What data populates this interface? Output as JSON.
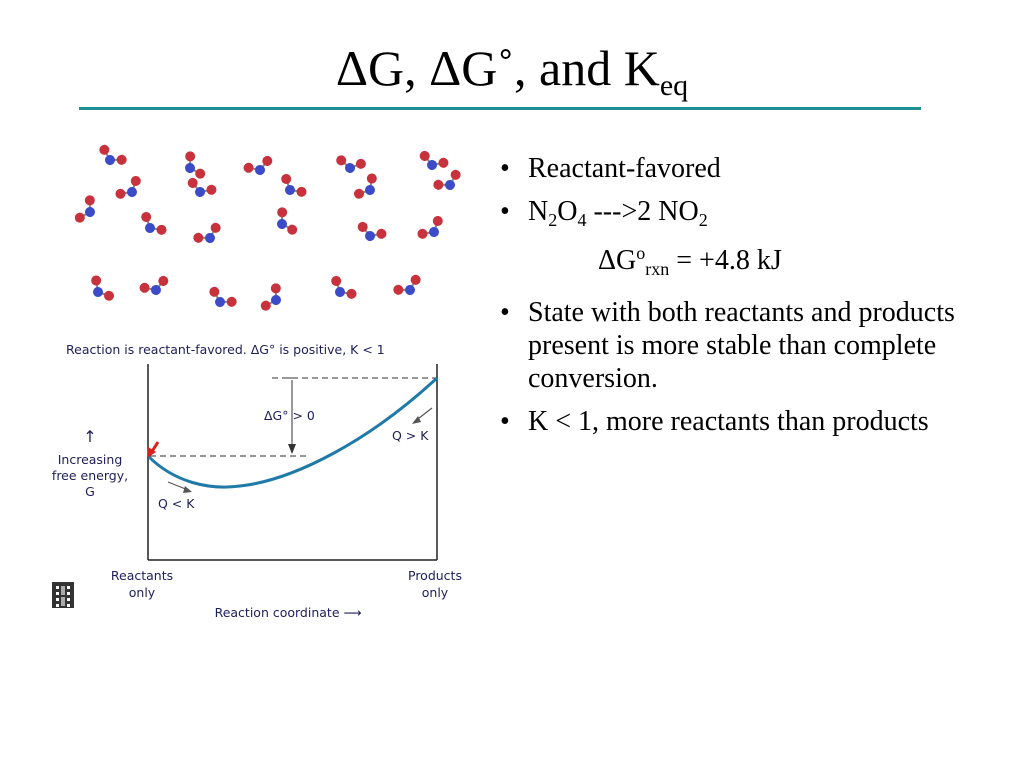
{
  "title": {
    "delta_g": "ΔG,",
    "delta_g_standard": "ΔG˚,",
    "and": "and K",
    "k_subscript": "eq"
  },
  "figure": {
    "caption": "Reaction is reactant-favored.  ΔG° is positive, K < 1",
    "delta_g_label": "ΔG° > 0",
    "q_greater": "Q > K",
    "q_less": "Q < K",
    "y_axis_arrow": "↑",
    "y_axis_label_1": "Increasing",
    "y_axis_label_2": "free energy,",
    "y_axis_label_3": "G",
    "x_left_1": "Reactants",
    "x_left_2": "only",
    "x_right_1": "Products",
    "x_right_2": "only",
    "x_axis_label": "Reaction coordinate ⟶",
    "molecule_red": "#c8323c",
    "molecule_blue": "#3c4bc8",
    "curve_color": "#1f7aa8"
  },
  "bullets": [
    {
      "text": "Reactant-favored"
    },
    {
      "n": "N",
      "n_sub": "2",
      "o": "O",
      "o_sub": "4",
      "arrow": " --->2 NO",
      "no2_sub": "2",
      "dg": "ΔG",
      "dg_sup": "o",
      "dg_sub": "rxn",
      "dg_val": " = +4.8 kJ"
    },
    {
      "text": "State with both reactants and products present is more stable than complete conversion."
    },
    {
      "text": "K < 1, more reactants than products"
    }
  ]
}
